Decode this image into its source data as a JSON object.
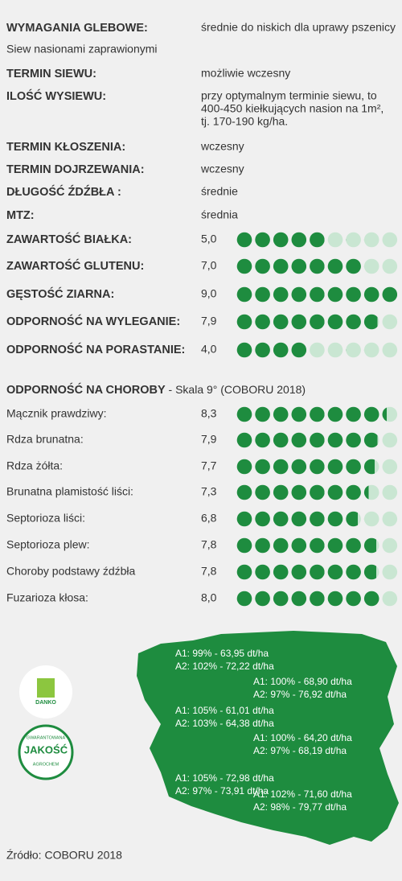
{
  "info_rows": [
    {
      "label": "WYMAGANIA GLEBOWE:",
      "value": "średnie do niskich dla uprawy pszenicy"
    },
    {
      "label": "Siew nasionami zaprawionymi"
    },
    {
      "label": "TERMIN SIEWU:",
      "value": "możliwie wczesny"
    },
    {
      "label": "ILOŚĆ WYSIEWU:",
      "value_lines": [
        "przy optymalnym terminie siewu, to",
        "400-450 kiełkujących nasion na 1m²,",
        "tj. 170-190 kg/ha."
      ]
    },
    {
      "label": "TERMIN KŁOSZENIA:",
      "value": "wczesny"
    },
    {
      "label": "TERMIN DOJRZEWANIA:",
      "value": "wczesny"
    },
    {
      "label": "DŁUGOŚĆ ŹDŹBŁA :",
      "value": "średnie"
    },
    {
      "label": "MTZ:",
      "value": "średnia"
    }
  ],
  "traits": [
    {
      "label": "ZAWARTOŚĆ BIAŁKA:",
      "score": {
        "value": 5.0,
        "label": "5,0"
      }
    },
    {
      "label": "ZAWARTOŚĆ GLUTENU:",
      "score": {
        "value": 7.0,
        "label": "7,0"
      }
    },
    {
      "label": "GĘSTOŚĆ ZIARNA:",
      "score": {
        "value": 9.0,
        "label": "9,0"
      }
    },
    {
      "label": "ODPORNOŚĆ NA WYLEGANIE:",
      "score": {
        "value": 7.9,
        "label": "7,9"
      }
    },
    {
      "label": "ODPORNOŚĆ NA PORASTANIE:",
      "score": {
        "value": 4.0,
        "label": "4,0"
      }
    }
  ],
  "disease_header": {
    "title": "ODPORNOŚĆ NA CHOROBY",
    "subtitle": " - Skala 9° (COBORU 2018)"
  },
  "diseases": [
    {
      "label": "Mącznik prawdziwy:",
      "score": {
        "value": 8.3,
        "label": "8,3"
      }
    },
    {
      "label": "Rdza brunatna:",
      "score": {
        "value": 7.9,
        "label": "7,9"
      }
    },
    {
      "label": "Rdza żółta:",
      "score": {
        "value": 7.7,
        "label": "7,7"
      }
    },
    {
      "label": "Brunatna plamistość liści:",
      "score": {
        "value": 7.3,
        "label": "7,3"
      }
    },
    {
      "label": "Septorioza liści:",
      "score": {
        "value": 6.8,
        "label": "6,8"
      }
    },
    {
      "label": "Septorioza plew:",
      "score": {
        "value": 7.8,
        "label": "7,8"
      }
    },
    {
      "label": "Choroby podstawy źdźbła",
      "score": {
        "value": 7.8,
        "label": "7,8"
      }
    },
    {
      "label": "Fuzarioza kłosa:",
      "score": {
        "value": 8.0,
        "label": "8,0"
      }
    }
  ],
  "map_regions": [
    {
      "a1": "A1: 99% - 63,95 dt/ha",
      "a2": "A2: 102% - 72,22 dt/ha"
    },
    {
      "a1": "A1: 100% - 68,90 dt/ha",
      "a2": "A2: 97% - 76,92 dt/ha"
    },
    {
      "a1": "A1: 105% - 61,01 dt/ha",
      "a2": "A2: 103% - 64,38 dt/ha"
    },
    {
      "a1": "A1: 100% - 64,20 dt/ha",
      "a2": "A2: 97% - 68,19 dt/ha"
    },
    {
      "a1": "A1: 105% - 72,98 dt/ha",
      "a2": "A2: 97% - 73,91 dt/ha"
    },
    {
      "a1": "A1: 102% - 71,60 dt/ha",
      "a2": "A2: 98% - 79,77 dt/ha"
    }
  ],
  "logos": {
    "danko": "DANKO",
    "badge_top": "GWARANTOWANA",
    "badge_main": "JAKOŚĆ",
    "badge_bottom": "AGROCHEM"
  },
  "source": "Źródło: COBORU 2018"
}
